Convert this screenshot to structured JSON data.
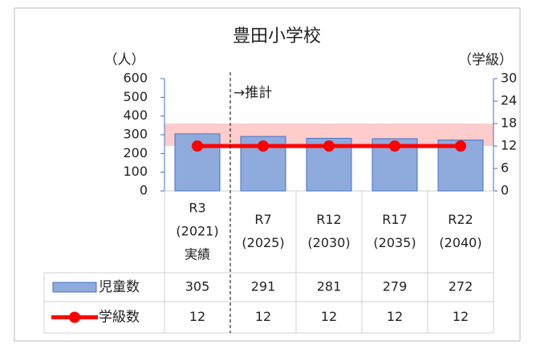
{
  "chart_data": {
    "type": "bar",
    "title": "豊田小学校",
    "y_label": "（人）",
    "y2_label": "（学級）",
    "annotation": "→推計",
    "categories": [
      [
        "R3",
        "(2021)",
        "実績"
      ],
      [
        "R7",
        "(2025)"
      ],
      [
        "R12",
        "(2030)"
      ],
      [
        "R17",
        "(2035)"
      ],
      [
        "R22",
        "(2040)"
      ]
    ],
    "series": [
      {
        "name": "児童数",
        "color": "#8faadc",
        "values": [
          305,
          291,
          281,
          279,
          272
        ]
      },
      {
        "name": "学級数",
        "color": "#ff0000",
        "values": [
          12,
          12,
          12,
          12,
          12
        ],
        "axis": "y2",
        "type": "line"
      }
    ],
    "band": [
      12,
      18
    ],
    "ylim": [
      0,
      600
    ],
    "yticks": [
      0,
      100,
      200,
      300,
      400,
      500,
      600
    ],
    "y2lim": [
      0,
      30
    ],
    "y2ticks": [
      0,
      6,
      12,
      18,
      24,
      30
    ]
  }
}
